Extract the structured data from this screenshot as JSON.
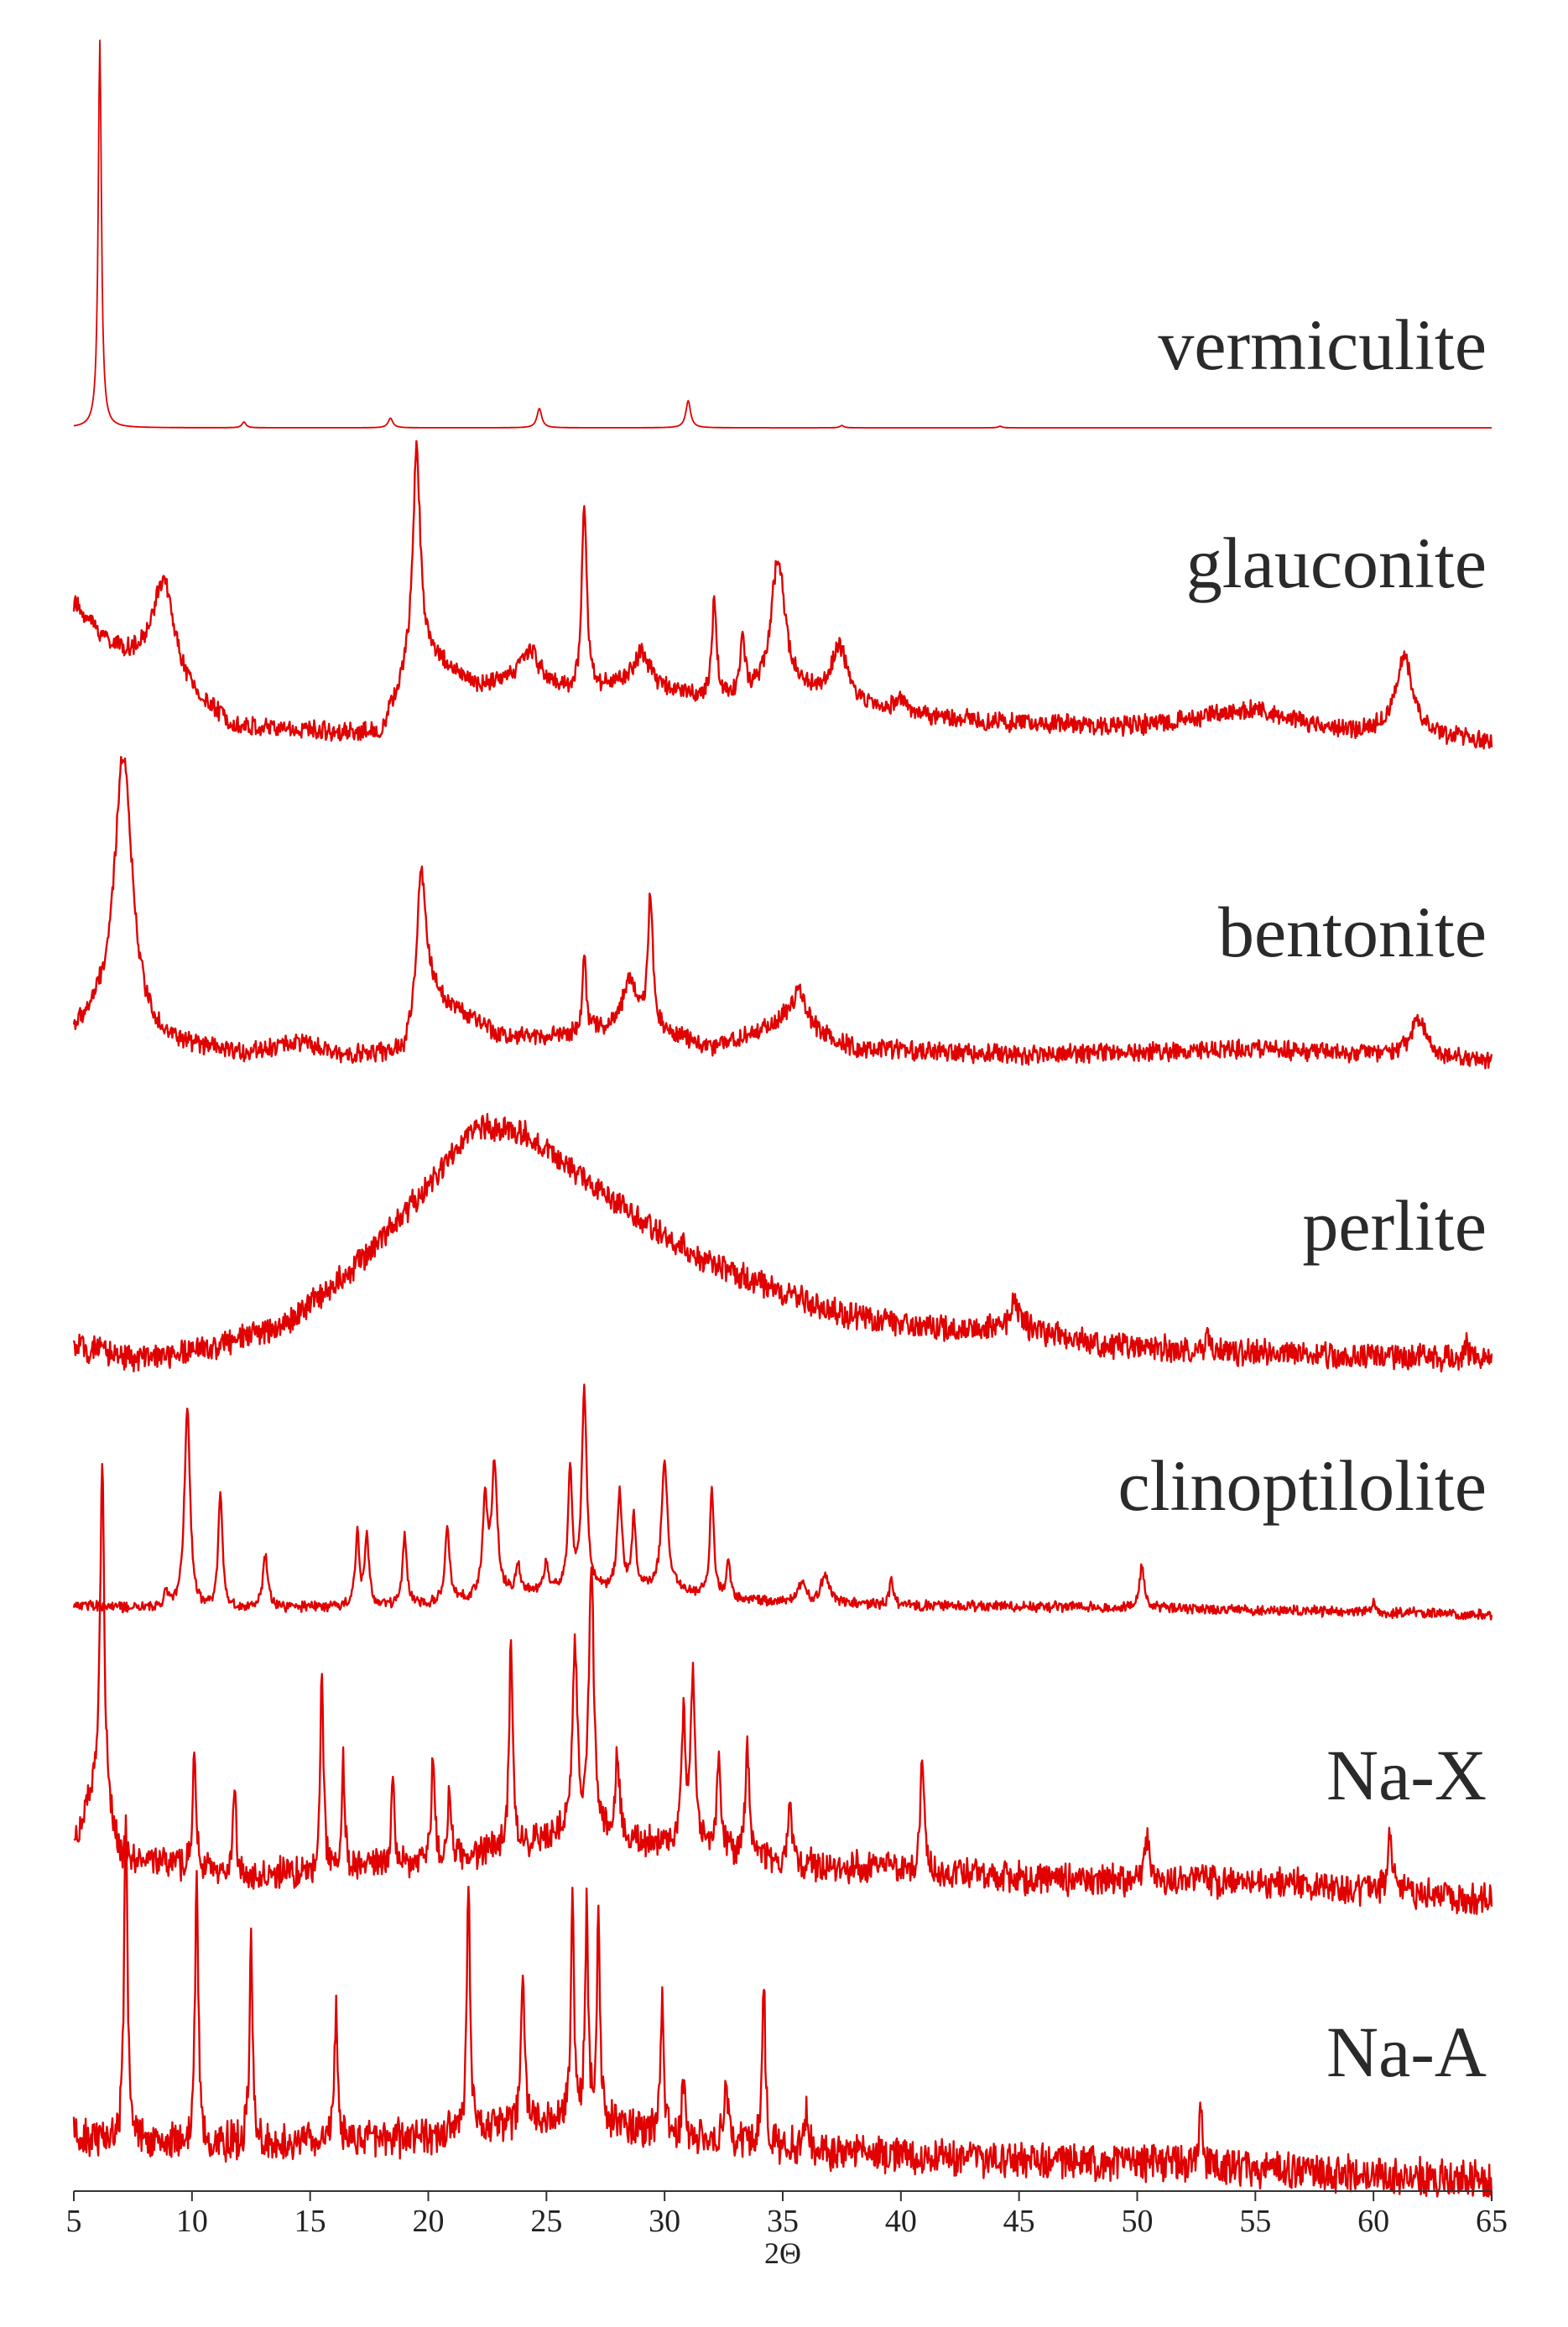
{
  "chart_data": {
    "type": "line",
    "title": "",
    "xlabel": "2Θ",
    "ylabel": "",
    "xlim": [
      5,
      65
    ],
    "x_ticks": [
      5,
      10,
      15,
      20,
      25,
      30,
      35,
      40,
      45,
      50,
      55,
      60,
      65
    ],
    "x_tick_labels": [
      "5",
      "10",
      "15",
      "20",
      "25",
      "30",
      "35",
      "40",
      "45",
      "50",
      "55",
      "60",
      "65"
    ],
    "grid": false,
    "legend": "none",
    "line_color": "#e00000",
    "layout": "stacked-offset",
    "series": [
      {
        "name": "vermiculite",
        "noise": 0,
        "baseline": [
          [
            5,
            0.0
          ],
          [
            65,
            0.0
          ]
        ],
        "peaks": [
          [
            6.1,
            1.0,
            0.08
          ],
          [
            12.2,
            0.015,
            0.1
          ],
          [
            18.4,
            0.025,
            0.12
          ],
          [
            24.7,
            0.05,
            0.12
          ],
          [
            31.0,
            0.07,
            0.12
          ],
          [
            37.5,
            0.006,
            0.1
          ],
          [
            44.2,
            0.004,
            0.1
          ]
        ]
      },
      {
        "name": "glauconite",
        "noise": 0.04,
        "baseline": [
          [
            5,
            0.5
          ],
          [
            6.5,
            0.35
          ],
          [
            9,
            0.18
          ],
          [
            12,
            0.05
          ],
          [
            18,
            0.03
          ],
          [
            19.6,
            0.35
          ],
          [
            22,
            0.2
          ],
          [
            24,
            0.22
          ],
          [
            26,
            0.18
          ],
          [
            29,
            0.22
          ],
          [
            32,
            0.15
          ],
          [
            36,
            0.18
          ],
          [
            40,
            0.1
          ],
          [
            45,
            0.07
          ],
          [
            50,
            0.06
          ],
          [
            55,
            0.12
          ],
          [
            58,
            0.05
          ],
          [
            65,
            0.0
          ]
        ],
        "peaks": [
          [
            8.8,
            0.4,
            0.6
          ],
          [
            19.5,
            0.75,
            0.18
          ],
          [
            24.3,
            0.12,
            0.5
          ],
          [
            26.6,
            0.7,
            0.12
          ],
          [
            29.0,
            0.1,
            0.4
          ],
          [
            32.1,
            0.35,
            0.12
          ],
          [
            33.3,
            0.2,
            0.12
          ],
          [
            34.8,
            0.5,
            0.35
          ],
          [
            37.4,
            0.2,
            0.35
          ],
          [
            40.0,
            0.06,
            0.3
          ],
          [
            61.3,
            0.28,
            0.45
          ]
        ]
      },
      {
        "name": "bentonite",
        "noise": 0.035,
        "baseline": [
          [
            5,
            0.08
          ],
          [
            6,
            0.12
          ],
          [
            9,
            0.05
          ],
          [
            12,
            0.02
          ],
          [
            14.5,
            0.06
          ],
          [
            16,
            0.02
          ],
          [
            19,
            0.02
          ],
          [
            20,
            0.22
          ],
          [
            23,
            0.08
          ],
          [
            26,
            0.08
          ],
          [
            29,
            0.12
          ],
          [
            32,
            0.04
          ],
          [
            35,
            0.12
          ],
          [
            38,
            0.04
          ],
          [
            45,
            0.02
          ],
          [
            55,
            0.04
          ],
          [
            65,
            0.0
          ]
        ],
        "peaks": [
          [
            7.1,
            0.9,
            0.45
          ],
          [
            19.7,
            0.45,
            0.22
          ],
          [
            26.6,
            0.25,
            0.1
          ],
          [
            28.5,
            0.15,
            0.3
          ],
          [
            29.4,
            0.42,
            0.12
          ],
          [
            35.7,
            0.12,
            0.4
          ],
          [
            61.9,
            0.12,
            0.4
          ]
        ]
      },
      {
        "name": "perlite",
        "noise": 0.05,
        "baseline": [
          [
            5,
            0.04
          ],
          [
            8,
            0.0
          ],
          [
            11,
            0.04
          ],
          [
            14,
            0.12
          ],
          [
            17,
            0.32
          ],
          [
            20,
            0.58
          ],
          [
            22,
            0.78
          ],
          [
            24,
            0.76
          ],
          [
            26,
            0.64
          ],
          [
            29,
            0.46
          ],
          [
            32,
            0.32
          ],
          [
            35,
            0.22
          ],
          [
            38,
            0.14
          ],
          [
            42,
            0.1
          ],
          [
            45,
            0.11
          ],
          [
            48,
            0.05
          ],
          [
            55,
            0.02
          ],
          [
            65,
            0.0
          ]
        ],
        "peaks": [
          [
            44.8,
            0.1,
            0.15
          ],
          [
            53.0,
            0.04,
            0.1
          ],
          [
            63.9,
            0.05,
            0.1
          ]
        ]
      },
      {
        "name": "clinoptilolite",
        "noise": 0.025,
        "baseline": [
          [
            5,
            0.04
          ],
          [
            9,
            0.02
          ],
          [
            20,
            0.04
          ],
          [
            25,
            0.1
          ],
          [
            30,
            0.1
          ],
          [
            33,
            0.06
          ],
          [
            40,
            0.04
          ],
          [
            50,
            0.03
          ],
          [
            65,
            0.0
          ]
        ],
        "peaks": [
          [
            8.9,
            0.08,
            0.1
          ],
          [
            9.8,
            0.85,
            0.14
          ],
          [
            11.2,
            0.5,
            0.1
          ],
          [
            13.1,
            0.22,
            0.12
          ],
          [
            17.0,
            0.3,
            0.1
          ],
          [
            17.4,
            0.3,
            0.1
          ],
          [
            19.0,
            0.3,
            0.1
          ],
          [
            20.8,
            0.3,
            0.12
          ],
          [
            22.4,
            0.4,
            0.12
          ],
          [
            22.8,
            0.55,
            0.14
          ],
          [
            23.8,
            0.12,
            0.1
          ],
          [
            25.0,
            0.12,
            0.1
          ],
          [
            26.0,
            0.5,
            0.1
          ],
          [
            26.6,
            0.85,
            0.12
          ],
          [
            28.1,
            0.4,
            0.12
          ],
          [
            28.7,
            0.3,
            0.1
          ],
          [
            30.0,
            0.55,
            0.15
          ],
          [
            32.0,
            0.45,
            0.1
          ],
          [
            32.7,
            0.15,
            0.1
          ],
          [
            35.8,
            0.08,
            0.2
          ],
          [
            36.8,
            0.12,
            0.2
          ],
          [
            39.6,
            0.1,
            0.1
          ],
          [
            50.2,
            0.18,
            0.12
          ],
          [
            60.0,
            0.05,
            0.1
          ]
        ]
      },
      {
        "name": "Na-X",
        "noise": 0.05,
        "baseline": [
          [
            5,
            0.15
          ],
          [
            6,
            0.3
          ],
          [
            7,
            0.12
          ],
          [
            12,
            0.06
          ],
          [
            20,
            0.1
          ],
          [
            26,
            0.18
          ],
          [
            30,
            0.15
          ],
          [
            35,
            0.1
          ],
          [
            45,
            0.06
          ],
          [
            55,
            0.05
          ],
          [
            65,
            0.0
          ]
        ],
        "peaks": [
          [
            6.2,
            0.95,
            0.1
          ],
          [
            10.1,
            0.35,
            0.08
          ],
          [
            11.8,
            0.25,
            0.08
          ],
          [
            15.5,
            0.55,
            0.08
          ],
          [
            16.4,
            0.3,
            0.08
          ],
          [
            18.5,
            0.25,
            0.08
          ],
          [
            20.2,
            0.3,
            0.08
          ],
          [
            20.9,
            0.2,
            0.08
          ],
          [
            23.5,
            0.6,
            0.08
          ],
          [
            26.2,
            0.5,
            0.12
          ],
          [
            26.9,
            0.75,
            0.12
          ],
          [
            28.0,
            0.25,
            0.1
          ],
          [
            30.8,
            0.35,
            0.1
          ],
          [
            31.2,
            0.5,
            0.1
          ],
          [
            32.3,
            0.25,
            0.1
          ],
          [
            33.5,
            0.3,
            0.1
          ],
          [
            35.3,
            0.15,
            0.1
          ],
          [
            40.9,
            0.3,
            0.1
          ],
          [
            50.4,
            0.12,
            0.1
          ],
          [
            60.7,
            0.15,
            0.12
          ]
        ]
      },
      {
        "name": "Na-A",
        "noise": 0.06,
        "baseline": [
          [
            5,
            0.12
          ],
          [
            10,
            0.1
          ],
          [
            20,
            0.12
          ],
          [
            26,
            0.18
          ],
          [
            30,
            0.12
          ],
          [
            40,
            0.07
          ],
          [
            50,
            0.05
          ],
          [
            65,
            0.0
          ]
        ],
        "peaks": [
          [
            7.2,
            0.95,
            0.08
          ],
          [
            10.2,
            0.75,
            0.08
          ],
          [
            12.5,
            0.55,
            0.08
          ],
          [
            16.1,
            0.38,
            0.08
          ],
          [
            21.7,
            0.7,
            0.08
          ],
          [
            24.0,
            0.45,
            0.08
          ],
          [
            26.1,
            0.6,
            0.08
          ],
          [
            26.7,
            0.58,
            0.08
          ],
          [
            27.2,
            0.55,
            0.08
          ],
          [
            29.9,
            0.4,
            0.08
          ],
          [
            30.8,
            0.15,
            0.08
          ],
          [
            32.6,
            0.2,
            0.08
          ],
          [
            34.2,
            0.45,
            0.08
          ],
          [
            36.0,
            0.1,
            0.08
          ],
          [
            52.7,
            0.2,
            0.08
          ]
        ]
      }
    ]
  }
}
